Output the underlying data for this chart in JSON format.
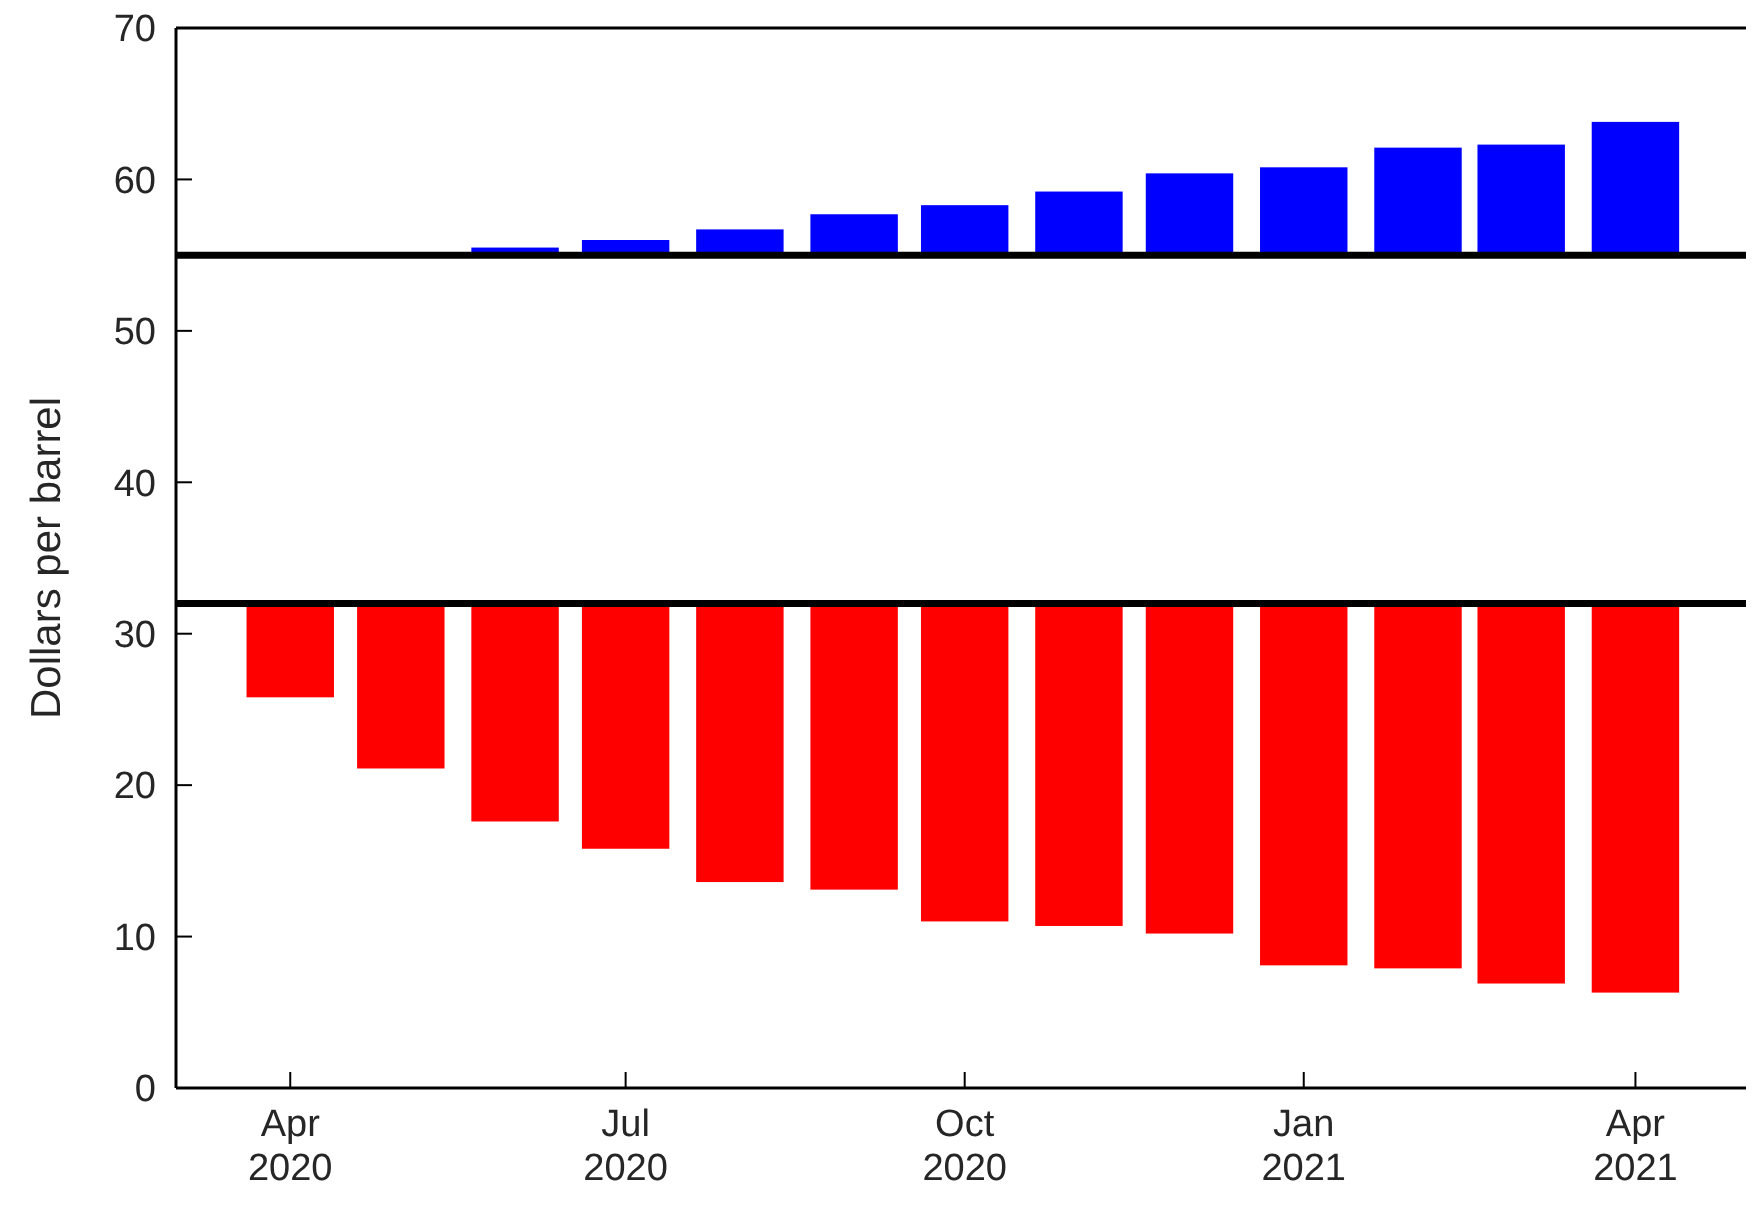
{
  "chart_data": {
    "type": "bar",
    "ylabel": "Dollars per barrel",
    "x": [
      "2020-04-01",
      "2020-05-01",
      "2020-06-01",
      "2020-07-01",
      "2020-08-01",
      "2020-09-01",
      "2020-10-01",
      "2020-11-01",
      "2020-12-01",
      "2021-01-01",
      "2021-02-01",
      "2021-03-01",
      "2021-04-01"
    ],
    "series": [
      {
        "color": "#0000ff",
        "base": [
          null,
          null,
          55,
          55,
          55,
          55,
          55,
          55,
          55,
          55,
          55,
          55,
          55
        ],
        "values": [
          null,
          null,
          0.5,
          1.0,
          1.7,
          2.7,
          3.3,
          4.2,
          5.4,
          5.8,
          7.1,
          7.3,
          8.8
        ]
      },
      {
        "color": "#ff0000",
        "base": [
          32,
          32,
          32,
          32,
          32,
          32,
          32,
          32,
          32,
          32,
          32,
          32,
          32
        ],
        "values": [
          -6.2,
          -10.9,
          -14.4,
          -16.2,
          -18.4,
          -18.9,
          -21.0,
          -21.3,
          -21.8,
          -23.9,
          -24.1,
          -25.1,
          -25.7
        ]
      }
    ],
    "xlim": [
      "2020-03-01",
      "2021-05-01"
    ],
    "xticks": [
      {
        "value": "2020-04-01",
        "label": "Apr\n2020"
      },
      {
        "value": "2020-07-01",
        "label": "Jul\n2020"
      },
      {
        "value": "2020-10-01",
        "label": "Oct\n2020"
      },
      {
        "value": "2021-01-01",
        "label": "Jan\n2021"
      },
      {
        "value": "2021-04-01",
        "label": "Apr\n2021"
      }
    ],
    "ylim": [
      0,
      70
    ],
    "yticks": [
      0,
      10,
      20,
      30,
      40,
      50,
      60,
      70
    ],
    "ref_lines": [
      {
        "axis": "y",
        "value": 55,
        "color": "#000000"
      },
      {
        "axis": "y",
        "value": 32,
        "color": "#000000"
      }
    ],
    "grid": false
  }
}
